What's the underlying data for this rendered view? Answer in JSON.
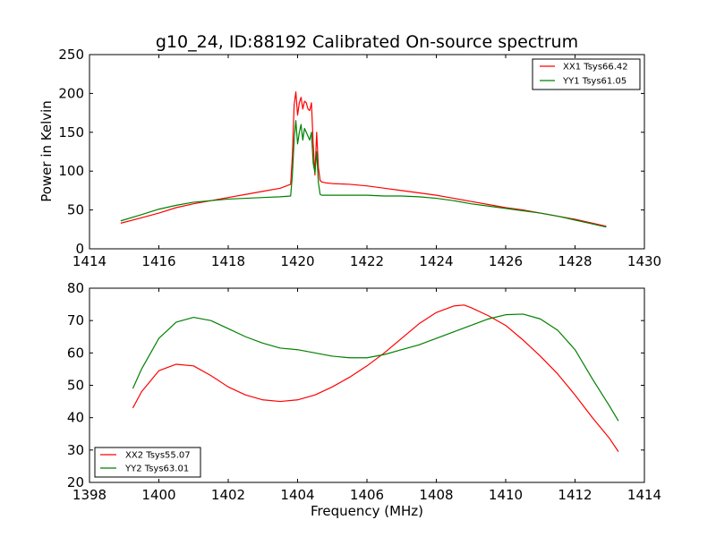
{
  "chart_data": [
    {
      "type": "line",
      "title": "g10_24, ID:88192 Calibrated On-source spectrum",
      "xlabel": "",
      "ylabel": "Power in Kelvin",
      "xlim": [
        1414,
        1430
      ],
      "ylim": [
        0,
        250
      ],
      "xticks": [
        "1414",
        "1416",
        "1418",
        "1420",
        "1422",
        "1424",
        "1426",
        "1428",
        "1430"
      ],
      "yticks": [
        "0",
        "50",
        "100",
        "150",
        "200",
        "250"
      ],
      "legend_position": "top-right",
      "series": [
        {
          "name": "XX1 Tsys66.42",
          "color": "#ff0000",
          "x": [
            1414.9,
            1415.5,
            1416,
            1416.5,
            1417,
            1417.5,
            1418,
            1418.5,
            1419,
            1419.5,
            1419.8,
            1419.85,
            1419.9,
            1419.95,
            1420.0,
            1420.05,
            1420.1,
            1420.15,
            1420.2,
            1420.25,
            1420.3,
            1420.35,
            1420.4,
            1420.45,
            1420.5,
            1420.55,
            1420.6,
            1420.65,
            1420.7,
            1420.8,
            1421,
            1421.5,
            1422,
            1422.5,
            1423,
            1423.5,
            1424,
            1424.5,
            1425,
            1425.5,
            1426,
            1426.5,
            1427,
            1427.5,
            1428,
            1428.5,
            1428.9
          ],
          "values": [
            33,
            40,
            46,
            53,
            58,
            62,
            66,
            70,
            74,
            78,
            83,
            120,
            185,
            202,
            172,
            188,
            195,
            180,
            190,
            188,
            180,
            178,
            188,
            135,
            95,
            150,
            105,
            88,
            86,
            85,
            84,
            83,
            81,
            78,
            75,
            72,
            69,
            65,
            61,
            57,
            53,
            50,
            46,
            42,
            38,
            33,
            29
          ]
        },
        {
          "name": "YY1 Tsys61.05",
          "color": "#008000",
          "x": [
            1414.9,
            1415.5,
            1416,
            1416.5,
            1417,
            1417.5,
            1418,
            1418.5,
            1419,
            1419.5,
            1419.8,
            1419.85,
            1419.9,
            1419.95,
            1420.0,
            1420.05,
            1420.1,
            1420.15,
            1420.2,
            1420.25,
            1420.3,
            1420.35,
            1420.4,
            1420.45,
            1420.5,
            1420.55,
            1420.6,
            1420.65,
            1420.7,
            1420.8,
            1421,
            1421.5,
            1422,
            1422.5,
            1423,
            1423.5,
            1424,
            1424.5,
            1425,
            1425.5,
            1426,
            1426.5,
            1427,
            1427.5,
            1428,
            1428.5,
            1428.9
          ],
          "values": [
            36,
            44,
            51,
            56,
            60,
            62,
            64,
            65,
            66,
            67,
            68,
            95,
            140,
            165,
            135,
            150,
            160,
            140,
            155,
            150,
            145,
            140,
            150,
            110,
            98,
            125,
            85,
            70,
            69,
            69,
            69,
            69,
            69,
            68,
            68,
            67,
            65,
            62,
            58,
            55,
            52,
            49,
            46,
            42,
            37,
            32,
            28
          ]
        }
      ]
    },
    {
      "type": "line",
      "title": "",
      "xlabel": "Frequency (MHz)",
      "ylabel": "",
      "xlim": [
        1398,
        1414
      ],
      "ylim": [
        20,
        80
      ],
      "xticks": [
        "1398",
        "1400",
        "1402",
        "1404",
        "1406",
        "1408",
        "1410",
        "1412",
        "1414"
      ],
      "yticks": [
        "20",
        "30",
        "40",
        "50",
        "60",
        "70",
        "80"
      ],
      "legend_position": "bottom-left",
      "series": [
        {
          "name": "XX2 Tsys55.07",
          "color": "#ff0000",
          "x": [
            1399.25,
            1399.5,
            1400,
            1400.5,
            1401,
            1401.5,
            1402,
            1402.5,
            1403,
            1403.5,
            1404,
            1404.5,
            1405,
            1405.5,
            1406,
            1406.5,
            1407,
            1407.5,
            1408,
            1408.5,
            1408.8,
            1409,
            1409.5,
            1410,
            1410.5,
            1411,
            1411.5,
            1412,
            1412.5,
            1413,
            1413.25
          ],
          "values": [
            43,
            48,
            54.5,
            56.5,
            56,
            53,
            49.5,
            47,
            45.5,
            45,
            45.5,
            47,
            49.5,
            52.5,
            56,
            60,
            64.5,
            69,
            72.5,
            74.5,
            74.8,
            74,
            71.5,
            68.5,
            64,
            59,
            53.5,
            47,
            40,
            33.5,
            29.5
          ]
        },
        {
          "name": "YY2 Tsys63.01",
          "color": "#008000",
          "x": [
            1399.25,
            1399.5,
            1400,
            1400.5,
            1401,
            1401.5,
            1402,
            1402.5,
            1403,
            1403.5,
            1404,
            1404.5,
            1405,
            1405.5,
            1406,
            1406.5,
            1407,
            1407.5,
            1408,
            1408.5,
            1409,
            1409.5,
            1410,
            1410.5,
            1411,
            1411.5,
            1412,
            1412.5,
            1413,
            1413.25
          ],
          "values": [
            49,
            55,
            64.5,
            69.5,
            71,
            70,
            67.5,
            65,
            63,
            61.5,
            61,
            60,
            59,
            58.5,
            58.5,
            59.5,
            61,
            62.5,
            64.5,
            66.5,
            68.5,
            70.5,
            71.8,
            72,
            70.5,
            67,
            61,
            52,
            43.5,
            39
          ]
        }
      ]
    }
  ]
}
